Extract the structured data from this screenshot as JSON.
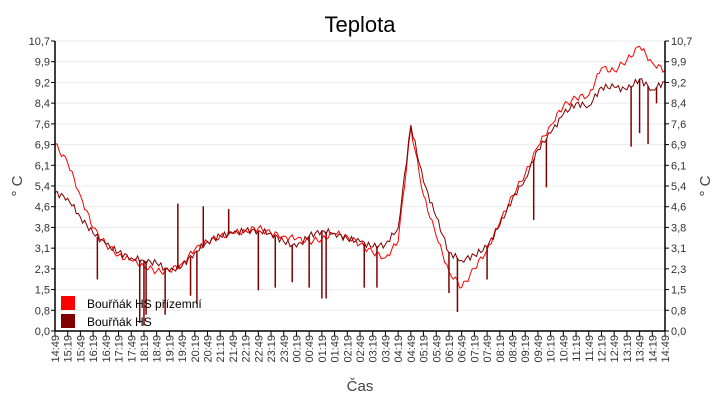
{
  "chart_data": {
    "type": "line",
    "title": "Teplota",
    "xlabel": "Čas",
    "ylabel": "° C",
    "ylabel_right": "° C",
    "ylim": [
      0,
      10.7
    ],
    "yticks": [
      "0,0",
      "0,8",
      "1,5",
      "2,3",
      "3,1",
      "3,8",
      "4,6",
      "5,4",
      "6,1",
      "6,9",
      "7,6",
      "8,4",
      "9,2",
      "9,9",
      "10,7"
    ],
    "x": [
      "14:49",
      "15:19",
      "15:49",
      "16:19",
      "16:49",
      "17:19",
      "17:49",
      "18:19",
      "18:49",
      "19:19",
      "19:49",
      "20:19",
      "20:49",
      "21:19",
      "21:49",
      "22:19",
      "22:49",
      "23:19",
      "23:49",
      "00:19",
      "00:49",
      "01:19",
      "01:49",
      "02:19",
      "02:49",
      "03:19",
      "03:49",
      "04:19",
      "04:49",
      "05:19",
      "05:49",
      "06:19",
      "06:49",
      "07:19",
      "07:49",
      "08:19",
      "08:49",
      "09:19",
      "09:49",
      "10:19",
      "10:49",
      "11:19",
      "11:49",
      "12:19",
      "12:49",
      "13:19",
      "13:49",
      "14:19",
      "14:49"
    ],
    "grid": true,
    "legend_placement": "bottom-left",
    "series": [
      {
        "name": "Bouřňák HS přízemní",
        "color": "#ff0000",
        "values": [
          6.9,
          6.2,
          5.0,
          3.8,
          3.2,
          2.8,
          2.6,
          2.4,
          2.2,
          2.2,
          2.5,
          3.0,
          3.3,
          3.5,
          3.6,
          3.7,
          3.8,
          3.6,
          3.5,
          3.4,
          3.3,
          3.4,
          3.6,
          3.5,
          3.2,
          2.9,
          2.7,
          3.3,
          7.5,
          5.0,
          3.5,
          2.2,
          1.6,
          2.3,
          3.0,
          4.0,
          5.0,
          5.8,
          6.8,
          7.6,
          8.3,
          8.6,
          8.7,
          9.7,
          9.6,
          10.0,
          10.5,
          9.9,
          9.6
        ]
      },
      {
        "name": "Bouřňák HS",
        "color": "#800000",
        "values": [
          5.1,
          4.9,
          4.2,
          3.6,
          3.2,
          2.9,
          2.7,
          2.6,
          2.5,
          2.2,
          2.4,
          2.9,
          3.3,
          3.5,
          3.6,
          3.7,
          3.7,
          3.6,
          3.3,
          3.1,
          3.5,
          3.7,
          3.6,
          3.4,
          3.3,
          3.1,
          3.2,
          3.8,
          7.6,
          5.5,
          4.2,
          2.9,
          2.6,
          2.8,
          3.1,
          3.9,
          4.9,
          5.6,
          6.7,
          7.3,
          8.0,
          8.4,
          8.3,
          9.0,
          9.0,
          8.9,
          9.3,
          8.9,
          9.2
        ],
        "spikes": [
          [
            "16:29",
            1.9
          ],
          [
            "18:09",
            0.3
          ],
          [
            "18:19",
            0.2
          ],
          [
            "18:24",
            0.6
          ],
          [
            "19:09",
            0.6
          ],
          [
            "19:39",
            4.7
          ],
          [
            "20:09",
            1.3
          ],
          [
            "20:24",
            1.0
          ],
          [
            "20:39",
            4.6
          ],
          [
            "21:39",
            4.5
          ],
          [
            "22:49",
            1.5
          ],
          [
            "23:29",
            1.6
          ],
          [
            "00:09",
            1.8
          ],
          [
            "00:49",
            1.6
          ],
          [
            "01:19",
            1.2
          ],
          [
            "01:29",
            1.2
          ],
          [
            "02:59",
            1.6
          ],
          [
            "03:29",
            1.6
          ],
          [
            "06:19",
            1.4
          ],
          [
            "06:39",
            0.7
          ],
          [
            "07:49",
            1.9
          ],
          [
            "09:39",
            4.1
          ],
          [
            "10:09",
            5.3
          ],
          [
            "13:29",
            6.8
          ],
          [
            "13:49",
            7.3
          ],
          [
            "14:09",
            6.9
          ],
          [
            "14:29",
            8.4
          ]
        ]
      }
    ]
  }
}
